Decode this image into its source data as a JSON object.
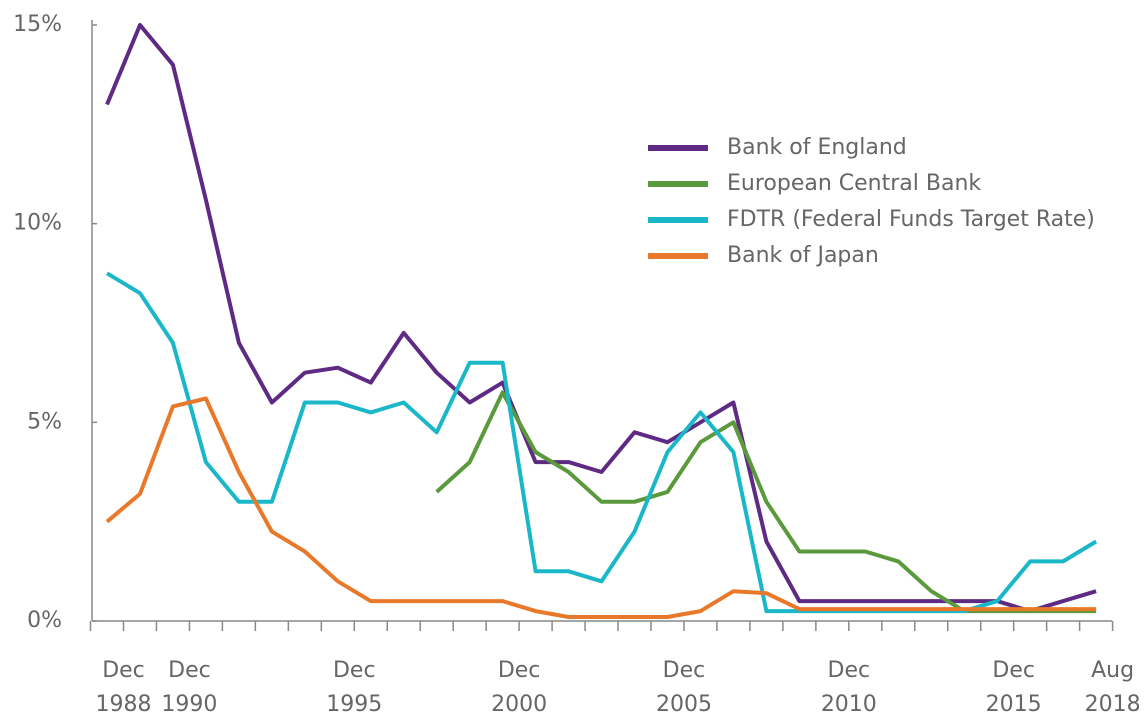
{
  "chart_data": {
    "type": "line",
    "categories": [
      "Dec 1988",
      null,
      "Dec 1990",
      null,
      null,
      null,
      null,
      "Dec 1995",
      null,
      null,
      null,
      null,
      "Dec 2000",
      null,
      null,
      null,
      null,
      "Dec 2005",
      null,
      null,
      null,
      null,
      "Dec 2010",
      null,
      null,
      null,
      null,
      "Dec 2015",
      null,
      null,
      "Aug 2018"
    ],
    "series": [
      {
        "name": "Bank of England",
        "color": "#5e2a84",
        "values": [
          13,
          15,
          14,
          10.6,
          7,
          5.5,
          6.25,
          6.375,
          6,
          7.25,
          6.25,
          5.5,
          6,
          4,
          4,
          3.75,
          4.75,
          4.5,
          5,
          5.5,
          2,
          0.5,
          0.5,
          0.5,
          0.5,
          0.5,
          0.5,
          0.5,
          0.25,
          0.5,
          0.75
        ]
      },
      {
        "name": "European Central Bank",
        "color": "#5a9a3c",
        "values": [
          null,
          null,
          null,
          null,
          null,
          null,
          null,
          null,
          null,
          null,
          3.25,
          4,
          5.75,
          4.25,
          3.75,
          3,
          3,
          3.25,
          4.5,
          5,
          3,
          1.75,
          1.75,
          1.75,
          1.5,
          0.75,
          0.25,
          0.25,
          0.25,
          0.25,
          0.25
        ]
      },
      {
        "name": "FDTR (Federal Funds Target Rate)",
        "color": "#1ab7c9",
        "values": [
          8.75,
          8.25,
          7,
          4,
          3,
          3,
          5.5,
          5.5,
          5.25,
          5.5,
          4.75,
          6.5,
          6.5,
          1.25,
          1.25,
          1,
          2.25,
          4.25,
          5.25,
          4.25,
          0.25,
          0.25,
          0.25,
          0.25,
          0.25,
          0.25,
          0.25,
          0.5,
          1.5,
          1.5,
          2
        ]
      },
      {
        "name": "Bank of Japan",
        "color": "#e8792b",
        "values": [
          2.5,
          3.2,
          5.4,
          5.6,
          3.75,
          2.25,
          1.75,
          1,
          0.5,
          0.5,
          0.5,
          0.5,
          0.5,
          0.25,
          0.1,
          0.1,
          0.1,
          0.1,
          0.25,
          0.75,
          0.7,
          0.3,
          0.3,
          0.3,
          0.3,
          0.3,
          0.3,
          0.3,
          0.3,
          0.3,
          0.3
        ]
      }
    ],
    "ylim": [
      0,
      15
    ],
    "yticks": [
      {
        "value": 0,
        "label": "0%"
      },
      {
        "value": 5,
        "label": "5%"
      },
      {
        "value": 10,
        "label": "10%"
      },
      {
        "value": 15,
        "label": "15%"
      }
    ],
    "legend": "upper right"
  }
}
